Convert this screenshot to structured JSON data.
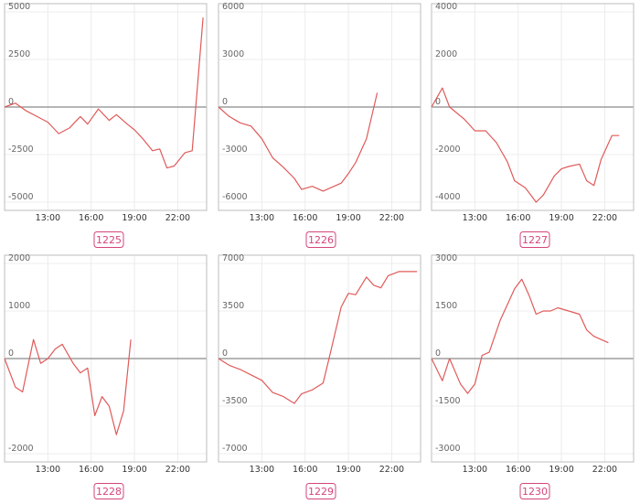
{
  "colors": {
    "series": "#e05a5a",
    "badge": "#d4457a",
    "zero_line": "#8a8a8a",
    "frame": "#bdbdbd"
  },
  "chart_data": [
    {
      "type": "line",
      "label": "1225",
      "ylim": [
        -5000,
        5000
      ],
      "yticks": [
        5000,
        2500,
        0,
        -2500,
        -5000
      ],
      "xticks": [
        "13:00",
        "16:00",
        "19:00",
        "22:00"
      ],
      "grid": true,
      "x": [
        "10:00",
        "10:45",
        "11:30",
        "12:15",
        "13:00",
        "13:45",
        "14:30",
        "15:15",
        "15:45",
        "16:30",
        "17:15",
        "17:45",
        "18:30",
        "19:00",
        "19:30",
        "20:15",
        "20:45",
        "21:15",
        "21:45",
        "22:30",
        "23:00",
        "23:45"
      ],
      "values": [
        0,
        200,
        -200,
        -500,
        -800,
        -1400,
        -1100,
        -500,
        -900,
        -100,
        -700,
        -400,
        -900,
        -1200,
        -1600,
        -2300,
        -2200,
        -3200,
        -3100,
        -2400,
        -2300,
        4700
      ]
    },
    {
      "type": "line",
      "label": "1226",
      "ylim": [
        -6000,
        6000
      ],
      "yticks": [
        6000,
        3000,
        0,
        -3000,
        -6000
      ],
      "xticks": [
        "13:00",
        "16:00",
        "19:00",
        "22:00"
      ],
      "grid": true,
      "x": [
        "10:00",
        "10:45",
        "11:30",
        "12:15",
        "13:00",
        "13:45",
        "14:30",
        "15:15",
        "15:45",
        "16:30",
        "17:15",
        "17:45",
        "18:30",
        "19:00",
        "19:30",
        "20:15",
        "21:00"
      ],
      "values": [
        0,
        -600,
        -1000,
        -1200,
        -2000,
        -3200,
        -3800,
        -4500,
        -5200,
        -5000,
        -5300,
        -5100,
        -4800,
        -4200,
        -3500,
        -2000,
        900
      ]
    },
    {
      "type": "line",
      "label": "1227",
      "ylim": [
        -4000,
        4000
      ],
      "yticks": [
        4000,
        2000,
        0,
        -2000,
        -4000
      ],
      "xticks": [
        "13:00",
        "16:00",
        "19:00",
        "22:00"
      ],
      "grid": true,
      "x": [
        "10:00",
        "10:45",
        "11:15",
        "12:15",
        "13:00",
        "13:45",
        "14:30",
        "15:15",
        "15:45",
        "16:30",
        "17:15",
        "17:45",
        "18:30",
        "19:00",
        "19:30",
        "20:15",
        "20:45",
        "21:15",
        "21:45",
        "22:30",
        "23:00"
      ],
      "values": [
        0,
        800,
        0,
        -500,
        -1000,
        -1000,
        -1500,
        -2300,
        -3100,
        -3400,
        -4000,
        -3700,
        -2900,
        -2600,
        -2500,
        -2400,
        -3100,
        -3300,
        -2200,
        -1200,
        -1200
      ]
    },
    {
      "type": "line",
      "label": "1228",
      "ylim": [
        -2000,
        2000
      ],
      "yticks": [
        2000,
        1000,
        0,
        -2000
      ],
      "xticks": [
        "13:00",
        "16:00",
        "19:00",
        "22:00"
      ],
      "grid": true,
      "x": [
        "10:00",
        "10:45",
        "11:15",
        "12:00",
        "12:30",
        "13:00",
        "13:30",
        "14:00",
        "14:45",
        "15:15",
        "15:45",
        "16:15",
        "16:45",
        "17:15",
        "17:45",
        "18:15",
        "18:45"
      ],
      "values": [
        0,
        -600,
        -700,
        400,
        -100,
        0,
        200,
        300,
        -100,
        -300,
        -200,
        -1200,
        -800,
        -1000,
        -1600,
        -1100,
        400
      ]
    },
    {
      "type": "line",
      "label": "1229",
      "ylim": [
        -7000,
        7000
      ],
      "yticks": [
        7000,
        3500,
        0,
        -3500,
        -7000
      ],
      "xticks": [
        "13:00",
        "16:00",
        "19:00",
        "22:00"
      ],
      "grid": true,
      "x": [
        "10:00",
        "10:45",
        "11:30",
        "12:15",
        "13:00",
        "13:45",
        "14:30",
        "15:15",
        "15:45",
        "16:30",
        "17:15",
        "17:45",
        "18:30",
        "19:00",
        "19:30",
        "20:15",
        "20:45",
        "21:15",
        "21:45",
        "22:30",
        "23:00",
        "23:45"
      ],
      "values": [
        0,
        -500,
        -800,
        -1200,
        -1600,
        -2500,
        -2800,
        -3300,
        -2600,
        -2300,
        -1800,
        400,
        3800,
        4800,
        4700,
        6000,
        5400,
        5200,
        6100,
        6400,
        6400,
        6400
      ]
    },
    {
      "type": "line",
      "label": "1230",
      "ylim": [
        -3000,
        3000
      ],
      "yticks": [
        3000,
        1500,
        0,
        -1500,
        -3000
      ],
      "xticks": [
        "13:00",
        "16:00",
        "19:00",
        "22:00"
      ],
      "grid": true,
      "x": [
        "10:00",
        "10:45",
        "11:15",
        "12:00",
        "12:30",
        "13:00",
        "13:30",
        "14:00",
        "14:45",
        "15:15",
        "15:45",
        "16:15",
        "16:45",
        "17:15",
        "17:45",
        "18:15",
        "18:45",
        "19:30",
        "20:15",
        "20:45",
        "21:15",
        "21:45",
        "22:15"
      ],
      "values": [
        0,
        -700,
        0,
        -800,
        -1100,
        -800,
        100,
        200,
        1200,
        1700,
        2200,
        2500,
        2000,
        1400,
        1500,
        1500,
        1600,
        1500,
        1400,
        900,
        700,
        600,
        500
      ]
    }
  ]
}
